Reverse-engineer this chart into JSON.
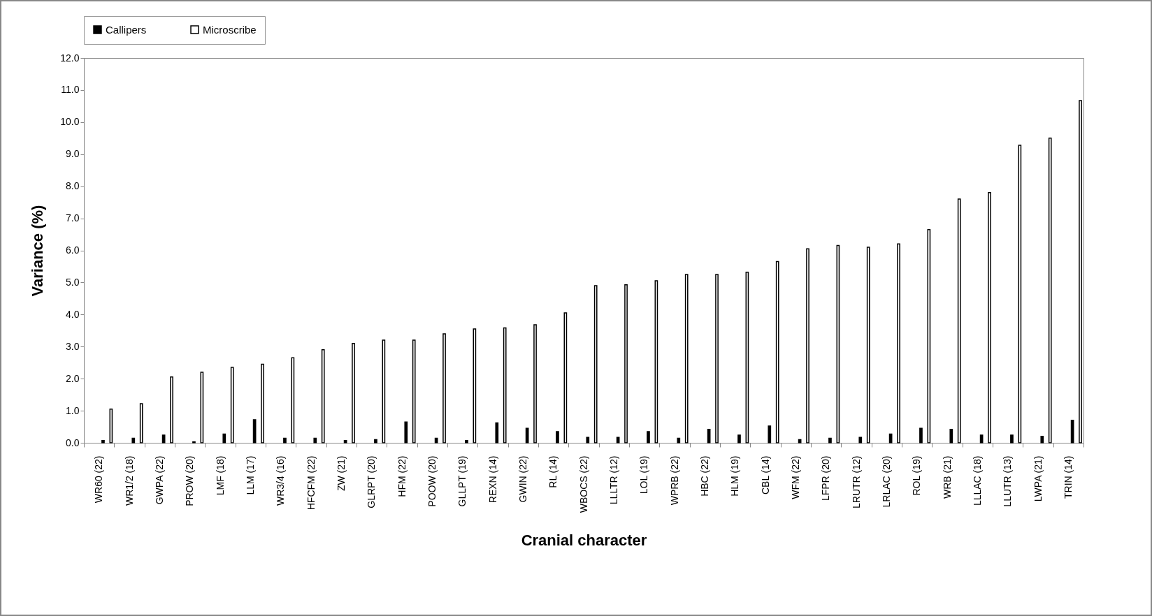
{
  "chart_data": {
    "type": "bar",
    "xlabel": "Cranial character",
    "ylabel": "Variance (%)",
    "categories": [
      "WR60 (22)",
      "WR1/2 (18)",
      "GWPA (22)",
      "PROW (20)",
      "LMF (18)",
      "LLM (17)",
      "WR3/4 (16)",
      "HFCFM (22)",
      "ZW (21)",
      "GLRPT (20)",
      "HFM (22)",
      "POOW (20)",
      "GLLPT (19)",
      "REXN (14)",
      "GWIN (22)",
      "RL (14)",
      "WBOCS (22)",
      "LLLTR (12)",
      "LOL (19)",
      "WPRB (22)",
      "HBC (22)",
      "HLM (19)",
      "CBL (14)",
      "WFM (22)",
      "LFPR (20)",
      "LRUTR (12)",
      "LRLAC (20)",
      "ROL (19)",
      "WRB (21)",
      "LLLAC (18)",
      "LLUTR (13)",
      "LWPA (21)",
      "TRIN (14)"
    ],
    "series": [
      {
        "name": "Callipers",
        "color": "#000000",
        "values": [
          0.07,
          0.14,
          0.24,
          0.03,
          0.27,
          0.72,
          0.14,
          0.14,
          0.07,
          0.1,
          0.65,
          0.14,
          0.07,
          0.62,
          0.45,
          0.35,
          0.17,
          0.17,
          0.35,
          0.14,
          0.42,
          0.24,
          0.52,
          0.1,
          0.14,
          0.17,
          0.27,
          0.45,
          0.42,
          0.24,
          0.24,
          0.2,
          0.7
        ]
      },
      {
        "name": "Microscribe",
        "color": "#ffffff",
        "values": [
          1.05,
          1.22,
          2.05,
          2.2,
          2.35,
          2.45,
          2.65,
          2.9,
          3.1,
          3.2,
          3.2,
          3.4,
          3.55,
          3.58,
          3.68,
          4.05,
          4.9,
          4.93,
          5.05,
          5.25,
          5.25,
          5.32,
          5.65,
          6.05,
          6.15,
          6.1,
          6.2,
          6.65,
          7.6,
          7.8,
          9.28,
          9.5,
          10.67
        ]
      }
    ],
    "ylim": [
      0,
      12
    ],
    "yticks": [
      {
        "value": 0,
        "label": "0.0"
      },
      {
        "value": 1,
        "label": "1.0"
      },
      {
        "value": 2,
        "label": "2.0"
      },
      {
        "value": 3,
        "label": "3.0"
      },
      {
        "value": 4,
        "label": "4.0"
      },
      {
        "value": 5,
        "label": "5.0"
      },
      {
        "value": 6,
        "label": "6.0"
      },
      {
        "value": 7,
        "label": "7.0"
      },
      {
        "value": 8,
        "label": "8.0"
      },
      {
        "value": 9,
        "label": "9.0"
      },
      {
        "value": 10,
        "label": "10.0"
      },
      {
        "value": 11,
        "label": "11.0"
      },
      {
        "value": 12,
        "label": "12.0"
      }
    ],
    "grid": false,
    "legend": "top"
  }
}
